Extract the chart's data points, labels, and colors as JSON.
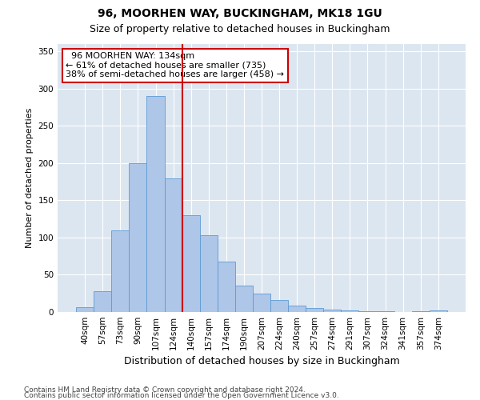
{
  "title1": "96, MOORHEN WAY, BUCKINGHAM, MK18 1GU",
  "title2": "Size of property relative to detached houses in Buckingham",
  "xlabel": "Distribution of detached houses by size in Buckingham",
  "ylabel": "Number of detached properties",
  "categories": [
    "40sqm",
    "57sqm",
    "73sqm",
    "90sqm",
    "107sqm",
    "124sqm",
    "140sqm",
    "157sqm",
    "174sqm",
    "190sqm",
    "207sqm",
    "224sqm",
    "240sqm",
    "257sqm",
    "274sqm",
    "291sqm",
    "307sqm",
    "324sqm",
    "341sqm",
    "357sqm",
    "374sqm"
  ],
  "values": [
    6,
    28,
    110,
    200,
    290,
    180,
    130,
    103,
    68,
    36,
    25,
    16,
    9,
    5,
    3,
    2,
    1,
    1,
    0,
    1,
    2
  ],
  "bar_color": "#aec6e8",
  "bar_edge_color": "#5b9bd5",
  "vline_x_index": 5.5,
  "vline_color": "#cc0000",
  "annotation_text": "  96 MOORHEN WAY: 134sqm\n← 61% of detached houses are smaller (735)\n38% of semi-detached houses are larger (458) →",
  "annotation_box_color": "#ffffff",
  "annotation_box_edge": "#cc0000",
  "ylim": [
    0,
    360
  ],
  "yticks": [
    0,
    50,
    100,
    150,
    200,
    250,
    300,
    350
  ],
  "bg_color": "#dce6f0",
  "grid_color": "#ffffff",
  "footer1": "Contains HM Land Registry data © Crown copyright and database right 2024.",
  "footer2": "Contains public sector information licensed under the Open Government Licence v3.0.",
  "title1_fontsize": 10,
  "title2_fontsize": 9,
  "xlabel_fontsize": 9,
  "ylabel_fontsize": 8,
  "tick_fontsize": 7.5,
  "annotation_fontsize": 8,
  "footer_fontsize": 6.5
}
